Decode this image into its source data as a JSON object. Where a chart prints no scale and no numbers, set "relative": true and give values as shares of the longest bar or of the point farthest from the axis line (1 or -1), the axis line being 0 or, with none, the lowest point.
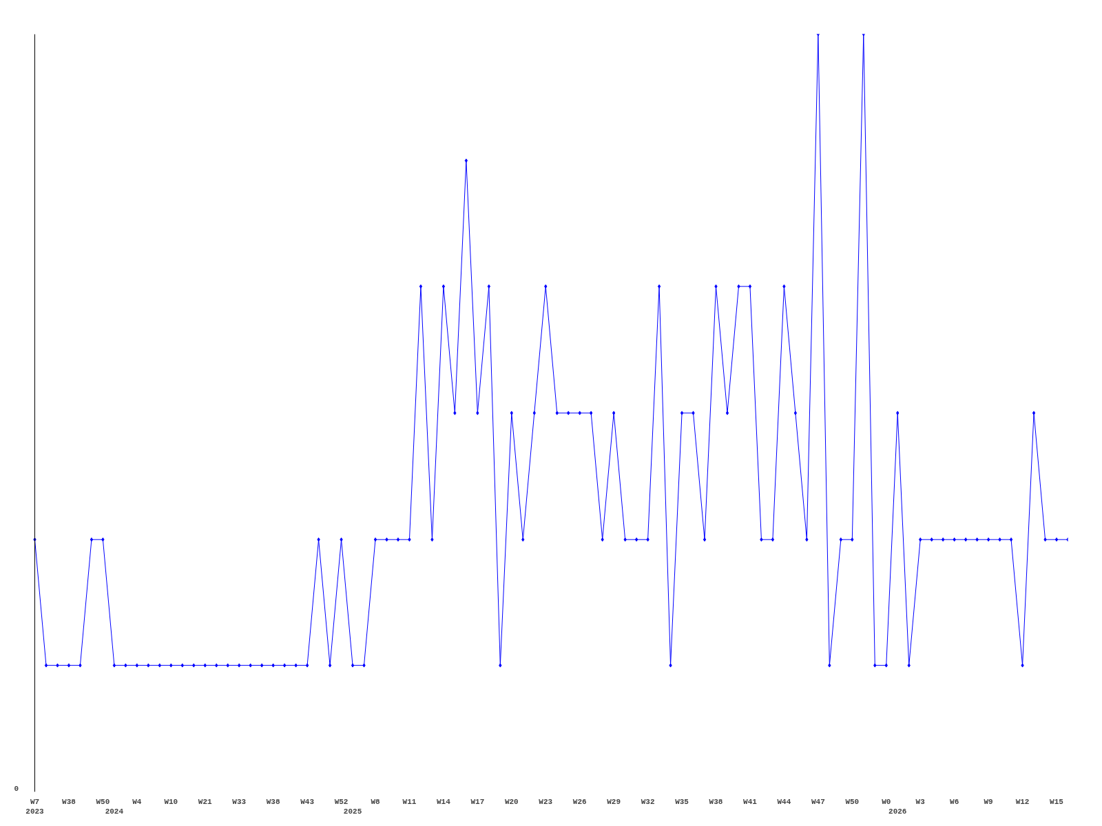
{
  "chart_data": {
    "type": "line",
    "relative": true,
    "color": "#0000ff",
    "marker": "diamond",
    "line_style": "solid",
    "annotations": [
      "0"
    ],
    "categories": [
      "W7\n2023",
      null,
      null,
      "W38",
      null,
      null,
      "W50",
      "\n2024",
      null,
      "W4",
      null,
      null,
      "W10",
      null,
      null,
      "W21",
      null,
      null,
      "W33",
      null,
      null,
      "W38",
      null,
      null,
      "W43",
      null,
      null,
      "W52",
      "\n2025",
      null,
      "W8",
      null,
      null,
      "W11",
      null,
      null,
      "W14",
      null,
      null,
      "W17",
      null,
      null,
      "W20",
      null,
      null,
      "W23",
      null,
      null,
      "W26",
      null,
      null,
      "W29",
      null,
      null,
      "W32",
      null,
      null,
      "W35",
      null,
      null,
      "W38",
      null,
      null,
      "W41",
      null,
      null,
      "W44",
      null,
      null,
      "W47",
      null,
      null,
      "W50",
      null,
      null,
      "W0",
      "\n2026",
      null,
      "W3",
      null,
      null,
      "W6",
      null,
      null,
      "W9",
      null,
      null,
      "W12",
      null,
      null,
      "W15",
      null
    ],
    "values": [
      0.333,
      0.167,
      0.167,
      0.167,
      0.167,
      0.333,
      0.333,
      0.167,
      0.167,
      0.167,
      0.167,
      0.167,
      0.167,
      0.167,
      0.167,
      0.167,
      0.167,
      0.167,
      0.167,
      0.167,
      0.167,
      0.167,
      0.167,
      0.167,
      0.167,
      0.333,
      0.167,
      0.333,
      0.167,
      0.167,
      0.333,
      0.333,
      0.333,
      0.333,
      0.667,
      0.333,
      0.667,
      0.5,
      0.833,
      0.5,
      0.667,
      0.167,
      0.5,
      0.333,
      0.5,
      0.667,
      0.5,
      0.5,
      0.5,
      0.5,
      0.333,
      0.5,
      0.333,
      0.333,
      0.333,
      0.667,
      0.167,
      0.5,
      0.5,
      0.333,
      0.667,
      0.5,
      0.667,
      0.667,
      0.333,
      0.333,
      0.667,
      0.5,
      0.333,
      1,
      0.167,
      0.333,
      0.333,
      1,
      0.167,
      0.167,
      0.5,
      0.167,
      0.333,
      0.333,
      0.333,
      0.333,
      0.333,
      0.333,
      0.333,
      0.333,
      0.333,
      0.167,
      0.5,
      0.333,
      0.333,
      0.333
    ]
  }
}
